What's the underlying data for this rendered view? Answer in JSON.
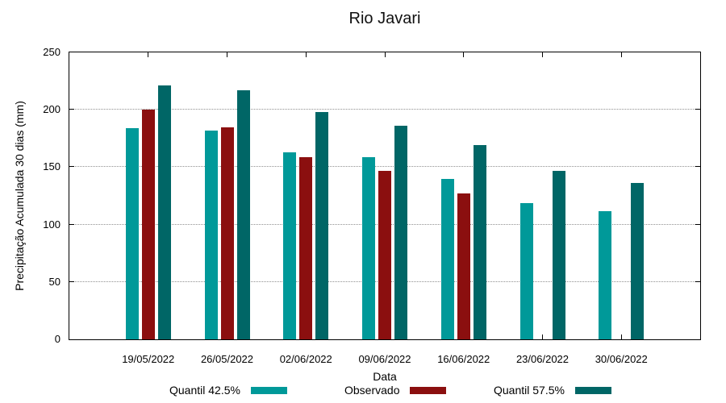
{
  "chart_data": {
    "type": "bar",
    "title": "Rio Javari",
    "xlabel": "Data",
    "ylabel": "Precipitação Acumulada 30 dias (mm)",
    "categories": [
      "19/05/2022",
      "26/05/2022",
      "02/06/2022",
      "09/06/2022",
      "16/06/2022",
      "23/06/2022",
      "30/06/2022"
    ],
    "series": [
      {
        "name": "Quantil 42.5%",
        "color": "#009999",
        "values": [
          184,
          182,
          163,
          159,
          140,
          119,
          112
        ]
      },
      {
        "name": "Observado",
        "color": "#8B0F0F",
        "values": [
          200,
          185,
          159,
          147,
          127,
          null,
          null
        ]
      },
      {
        "name": "Quantil 57.5%",
        "color": "#006666",
        "values": [
          221,
          217,
          198,
          186,
          169,
          147,
          136
        ]
      }
    ],
    "ylim": [
      0,
      250
    ],
    "yticks": [
      0,
      50,
      100,
      150,
      200,
      250
    ],
    "grid": true,
    "grid_style": "dotted",
    "legend_position": "bottom",
    "axis_color": "#000000",
    "background_color": "#ffffff"
  }
}
